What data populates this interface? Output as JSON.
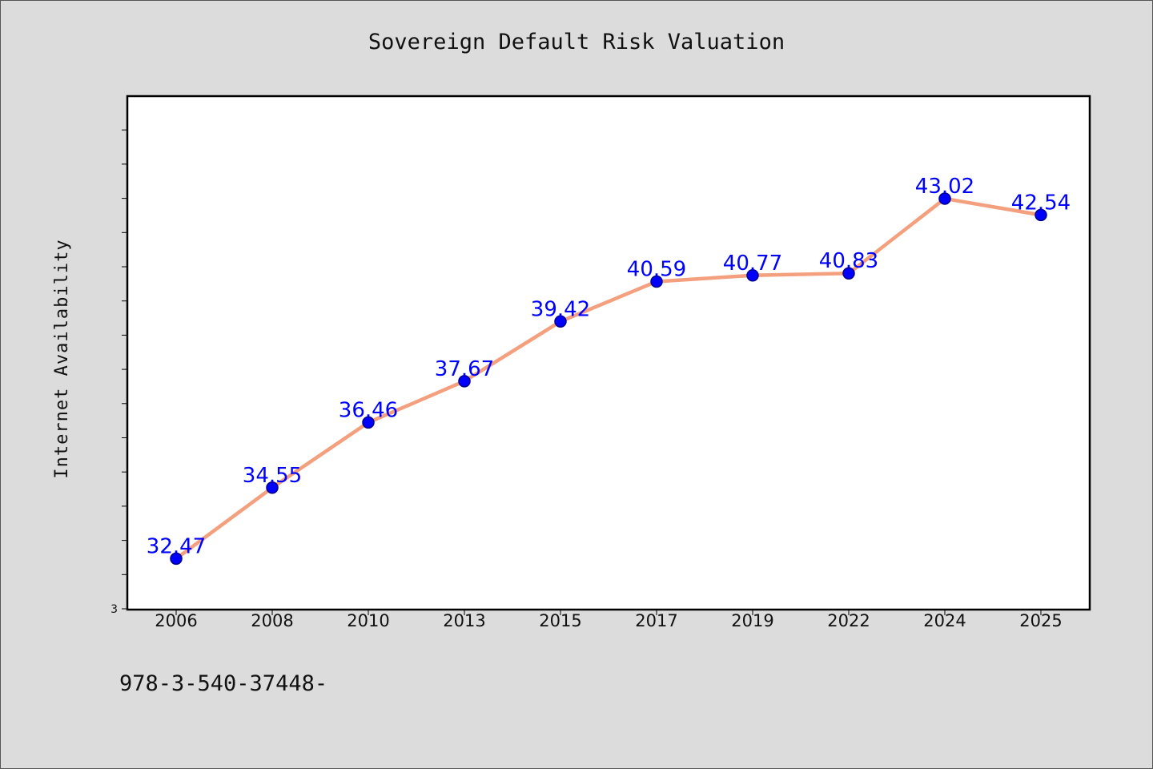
{
  "chart_data": {
    "type": "line",
    "title": "Sovereign Default Risk Valuation",
    "xlabel": "",
    "ylabel": "Internet Availability",
    "categories": [
      "2006",
      "2008",
      "2010",
      "2013",
      "2015",
      "2017",
      "2019",
      "2022",
      "2024",
      "2025"
    ],
    "series": [
      {
        "values": [
          32.47,
          34.55,
          36.46,
          37.67,
          39.42,
          40.59,
          40.77,
          40.83,
          43.02,
          42.54
        ],
        "labels": [
          "32.47",
          "34.55",
          "36.46",
          "37.67",
          "39.42",
          "40.59",
          "40.77",
          "40.83",
          "43.02",
          "42.54"
        ]
      }
    ],
    "ylim": [
      31.0,
      46.0
    ],
    "ytick_labels": [
      "3"
    ],
    "grid": false,
    "legend": "none"
  },
  "footnote": "978-3-540-37448-",
  "colors": {
    "line": "#f4a07e",
    "marker": "#0000ff",
    "marker_edge": "#00008b",
    "data_label": "#0000ff",
    "background": "#dcdcdc",
    "plot_background": "#ffffff"
  }
}
